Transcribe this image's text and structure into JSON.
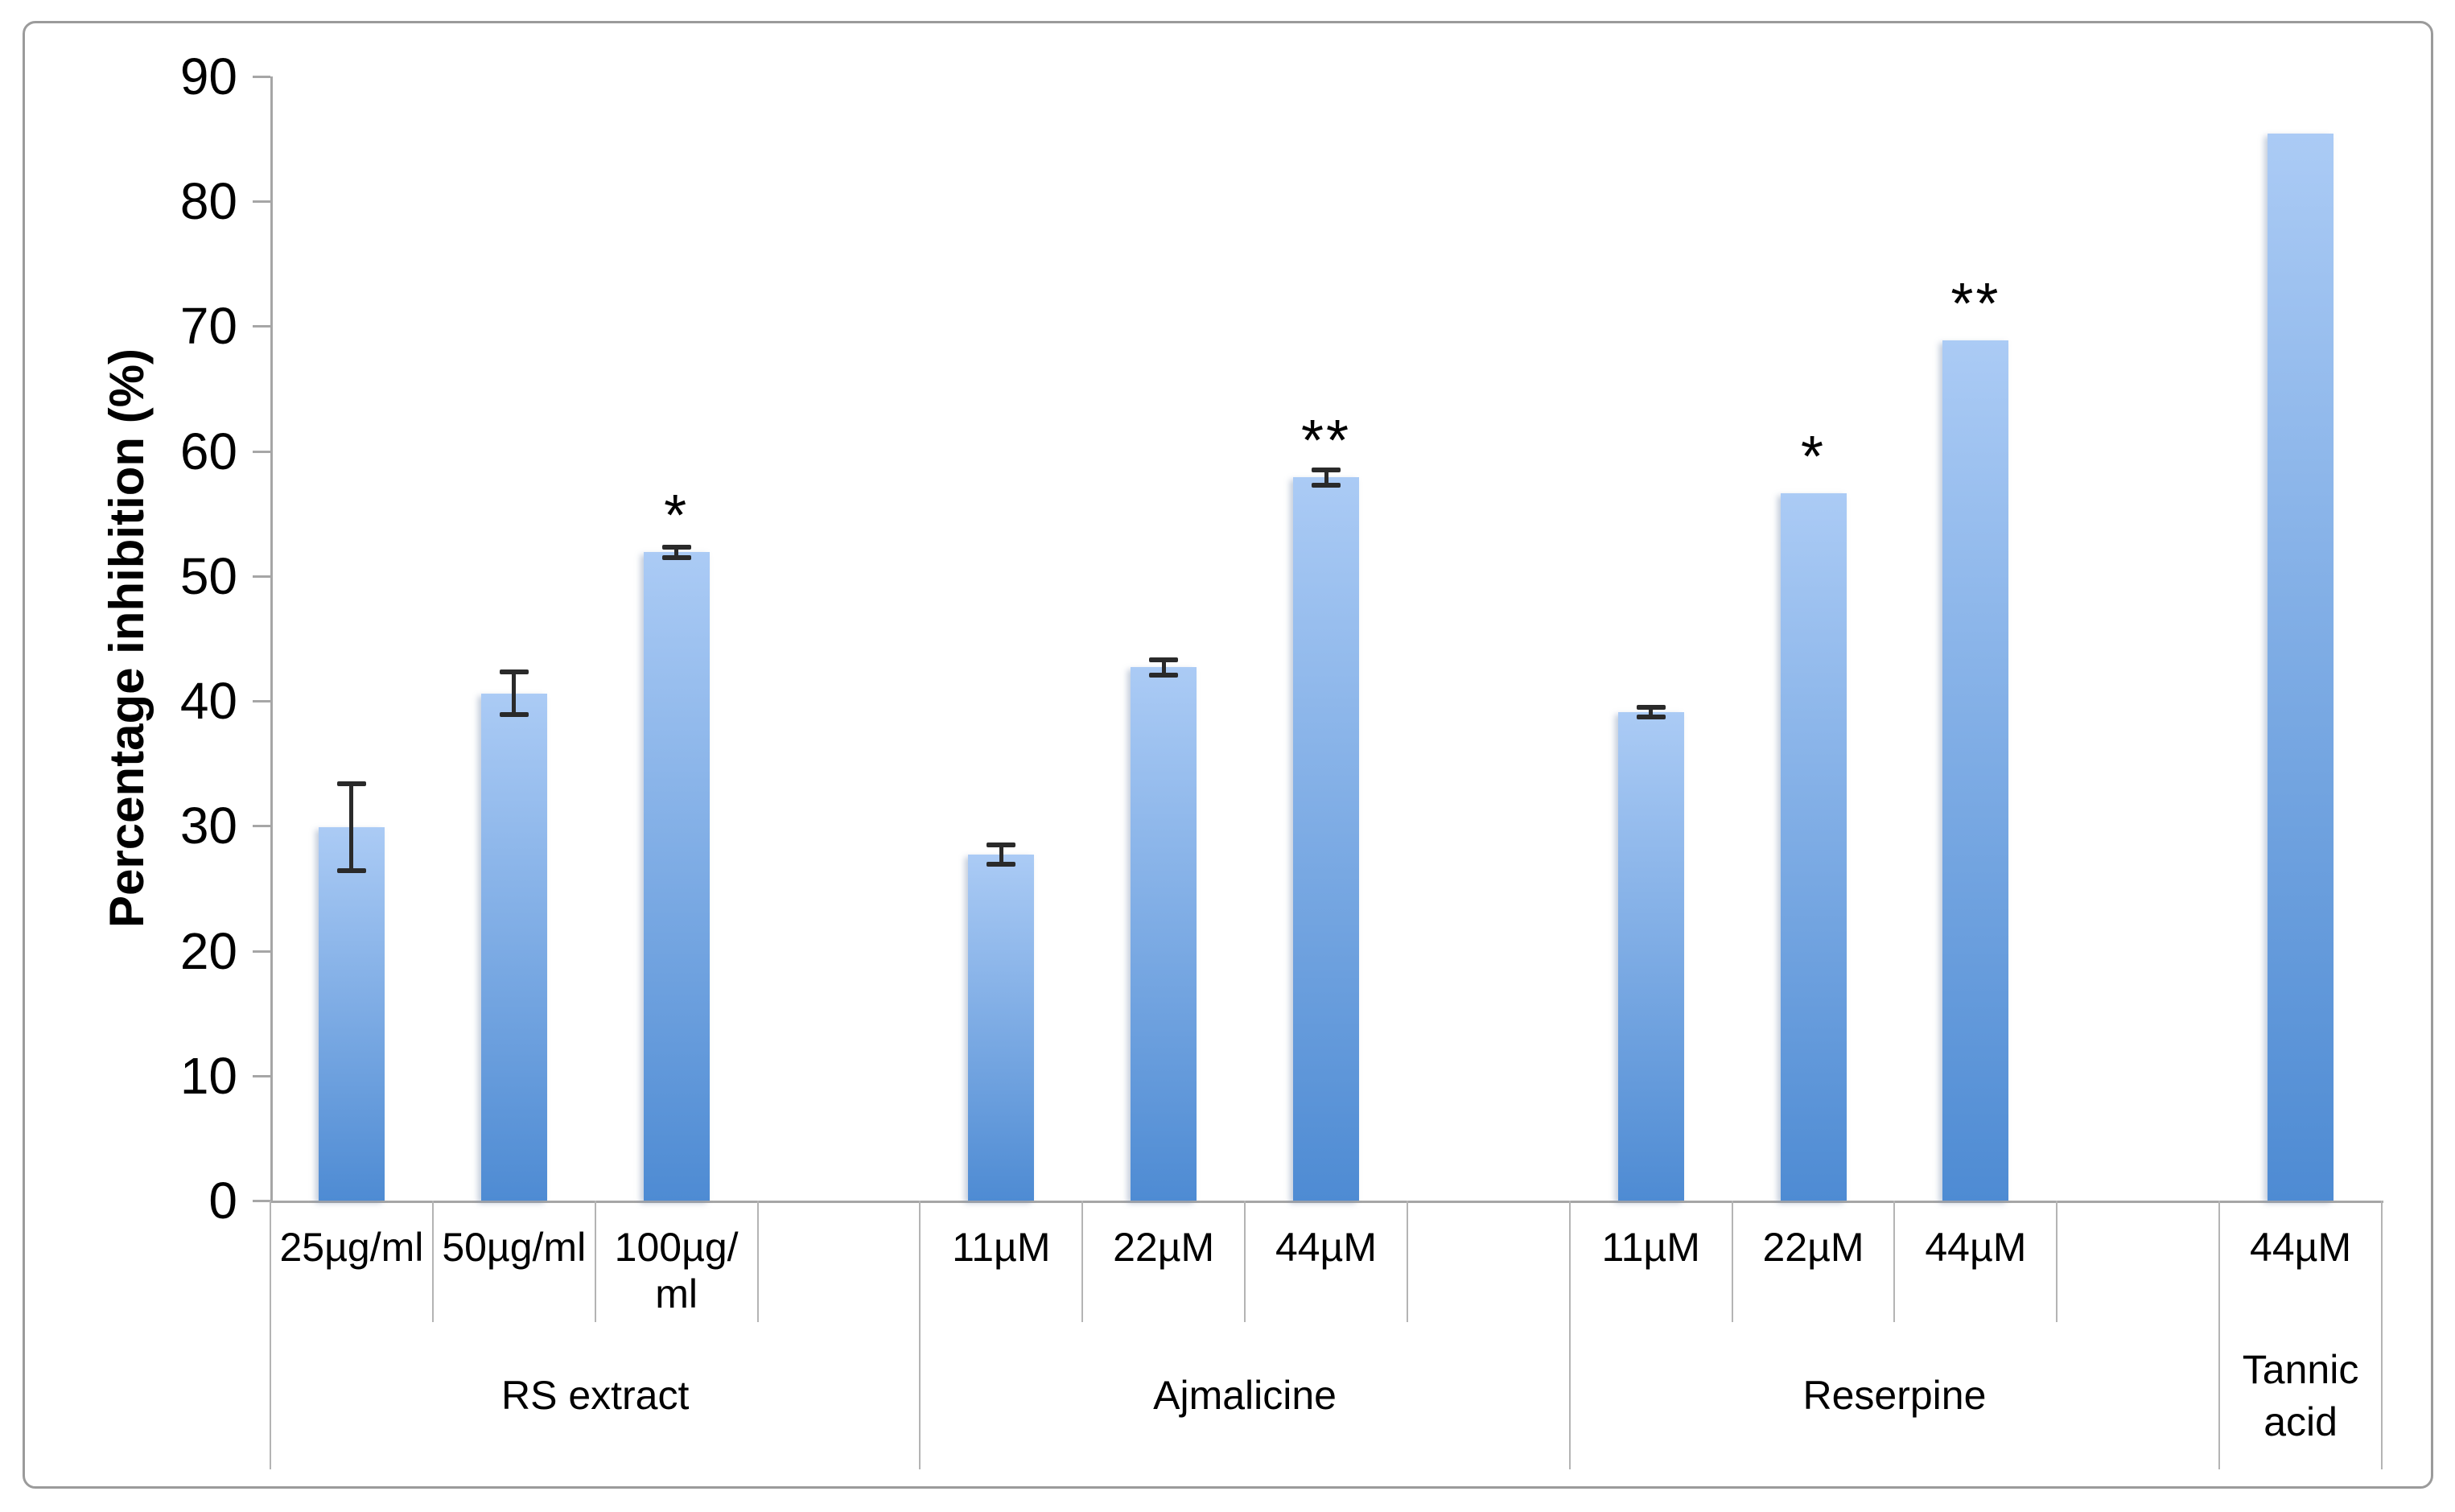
{
  "figure": {
    "background": "#ffffff",
    "border_color": "#9b9b9b",
    "accent_bar_top": "#abcbf5",
    "accent_bar_bottom": "#4e8bd3",
    "error_bar_color": "#2a2a2a"
  },
  "chart_data": {
    "type": "bar",
    "title": "",
    "xlabel": "",
    "ylabel": "Percentage inhibition (%)",
    "ylim": [
      0,
      90
    ],
    "yticks": [
      0,
      10,
      20,
      30,
      40,
      50,
      60,
      70,
      80,
      90
    ],
    "grid": false,
    "legend": null,
    "bar_fill": {
      "top": "#abcbf5",
      "bottom": "#4e8bd3"
    },
    "groups": [
      {
        "label": "RS extract",
        "items": [
          {
            "label": "25µg/ml",
            "value": 29.9,
            "error": 3.5,
            "sig": null
          },
          {
            "label": "50µg/ml",
            "value": 40.6,
            "error": 1.7,
            "sig": null
          },
          {
            "label": "100µg/ml",
            "value": 51.9,
            "error": 0.4,
            "sig": "*"
          },
          {
            "label": "",
            "value": null,
            "error": null,
            "sig": null
          }
        ]
      },
      {
        "label": "Ajmalicine",
        "items": [
          {
            "label": "11µM",
            "value": 27.7,
            "error": 0.8,
            "sig": null
          },
          {
            "label": "22µM",
            "value": 42.7,
            "error": 0.6,
            "sig": null
          },
          {
            "label": "44µM",
            "value": 57.9,
            "error": 0.6,
            "sig": "**"
          },
          {
            "label": "",
            "value": null,
            "error": null,
            "sig": null
          }
        ]
      },
      {
        "label": "Reserpine",
        "items": [
          {
            "label": "11µM",
            "value": 39.1,
            "error": 0.4,
            "sig": null
          },
          {
            "label": "22µM",
            "value": 56.6,
            "error": null,
            "sig": "*"
          },
          {
            "label": "44µM",
            "value": 68.9,
            "error": null,
            "sig": "**"
          },
          {
            "label": "",
            "value": null,
            "error": null,
            "sig": null
          }
        ]
      },
      {
        "label": "Tannic acid",
        "items": [
          {
            "label": "44µM",
            "value": 85.4,
            "error": null,
            "sig": null
          }
        ]
      }
    ]
  }
}
